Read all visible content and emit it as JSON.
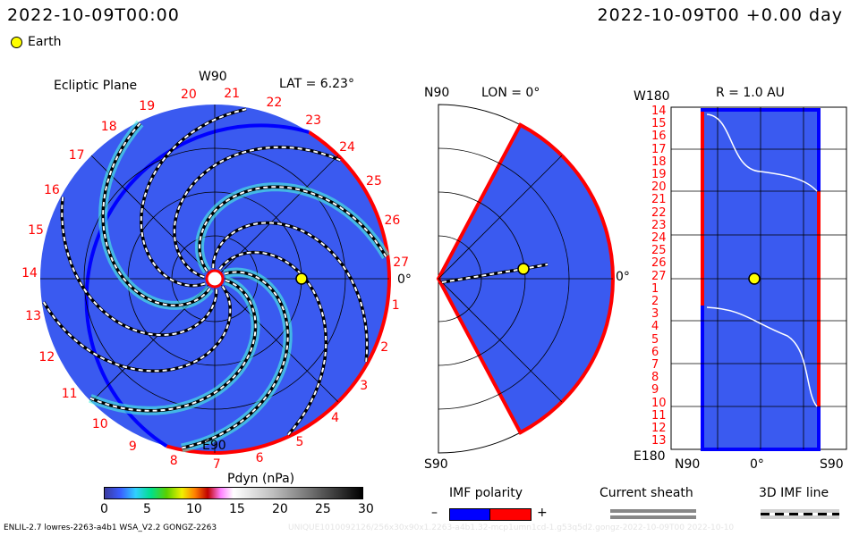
{
  "header": {
    "left_time": "2022-10-09T00:00",
    "right_time": "2022-10-09T00 +0.00 day",
    "legend_earth": "Earth"
  },
  "ecliptic": {
    "title": "Ecliptic Plane",
    "lat": "LAT = 6.23°",
    "top": "W90",
    "bottom": "E90",
    "right": "0°",
    "sector_numbers": [
      "1",
      "2",
      "3",
      "4",
      "5",
      "6",
      "7",
      "8",
      "9",
      "10",
      "11",
      "12",
      "13",
      "14",
      "15",
      "16",
      "17",
      "18",
      "19",
      "20",
      "21",
      "22",
      "23",
      "24",
      "25",
      "26",
      "27"
    ]
  },
  "meridional": {
    "title": "LON = 0°",
    "top": "N90",
    "bottom": "S90",
    "right": "0°"
  },
  "radial": {
    "title": "R = 1.0 AU",
    "top": "W180",
    "bottom": "E180",
    "x_left": "N90",
    "x_mid": "0°",
    "x_right": "S90",
    "rows": [
      "14",
      "15",
      "16",
      "17",
      "18",
      "19",
      "20",
      "21",
      "22",
      "23",
      "24",
      "25",
      "26",
      "27",
      "1",
      "2",
      "3",
      "4",
      "5",
      "6",
      "7",
      "8",
      "9",
      "10",
      "11",
      "12",
      "13"
    ]
  },
  "colorbar": {
    "title": "Pdyn (nPa)",
    "ticks": [
      "0",
      "5",
      "10",
      "15",
      "20",
      "25",
      "30"
    ],
    "range": [
      0,
      30
    ]
  },
  "legend": {
    "imf_title": "IMF polarity",
    "minus": "–",
    "plus": "+",
    "sheath": "Current sheath",
    "imf_line": "3D IMF line",
    "colors": {
      "neg": "#0000ff",
      "pos": "#ff0000"
    }
  },
  "footer": {
    "model": "ENLIL-2.7 lowres-2263-a4b1 WSA_V2.2 GONGZ-2263",
    "run": "UNIQUE1010092126/256x30x90x1.2263-a4b1.32-mcp1umn1cd-1.g53q5d2.gongz-2022-10-09T00   2022-10-10"
  }
}
